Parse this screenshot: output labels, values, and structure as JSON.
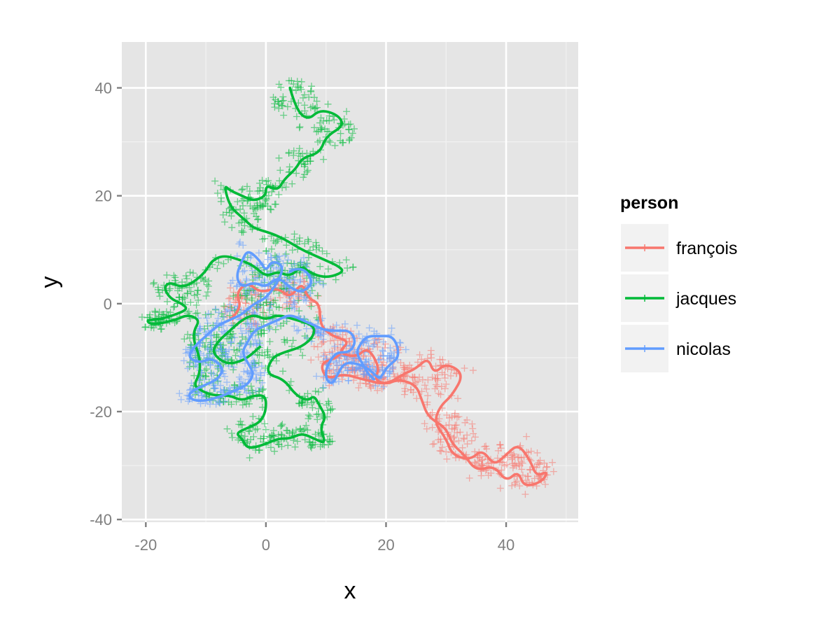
{
  "chart_data": {
    "type": "scatter",
    "xlabel": "x",
    "ylabel": "y",
    "xlim": [
      -24,
      52
    ],
    "ylim": [
      -40.5,
      48.5
    ],
    "xticks": [
      -20,
      0,
      20,
      40
    ],
    "yticks": [
      -40,
      -20,
      0,
      20,
      40
    ],
    "x_tick_labels": [
      "-20",
      "0",
      "20",
      "40"
    ],
    "y_tick_labels": [
      "-40",
      "-20",
      "0",
      "20",
      "40"
    ],
    "grid": true,
    "legend": {
      "title": "person",
      "position": "right"
    },
    "point_shape": "plus",
    "series": [
      {
        "name": "françois",
        "color": "#F8766D",
        "path": [
          [
            -6,
            -3
          ],
          [
            -4,
            -1
          ],
          [
            -5,
            2
          ],
          [
            -3,
            4
          ],
          [
            -1,
            2
          ],
          [
            2,
            3
          ],
          [
            4,
            1
          ],
          [
            6,
            4
          ],
          [
            7,
            1
          ],
          [
            9,
            0
          ],
          [
            9,
            -4
          ],
          [
            11,
            -6
          ],
          [
            14,
            -7
          ],
          [
            12,
            -9
          ],
          [
            15,
            -10
          ],
          [
            17,
            -8
          ],
          [
            19,
            -12
          ],
          [
            18,
            -14
          ],
          [
            20,
            -15
          ],
          [
            23,
            -13
          ],
          [
            25,
            -12
          ],
          [
            27,
            -10
          ],
          [
            28,
            -13
          ],
          [
            30,
            -11
          ],
          [
            33,
            -13
          ],
          [
            31,
            -17
          ],
          [
            29,
            -19
          ],
          [
            28,
            -22
          ],
          [
            30,
            -25
          ],
          [
            31,
            -28
          ],
          [
            34,
            -29
          ],
          [
            36,
            -27
          ],
          [
            38,
            -30
          ],
          [
            40,
            -28
          ],
          [
            42,
            -26
          ],
          [
            44,
            -29
          ],
          [
            45,
            -32
          ],
          [
            47,
            -31
          ],
          [
            46,
            -33
          ],
          [
            43,
            -34
          ],
          [
            42,
            -31
          ],
          [
            40,
            -33
          ],
          [
            38,
            -30
          ],
          [
            35,
            -31
          ],
          [
            33,
            -28
          ],
          [
            31,
            -26
          ],
          [
            30,
            -23
          ],
          [
            27,
            -21
          ],
          [
            26,
            -18
          ],
          [
            25,
            -15
          ],
          [
            22,
            -14
          ],
          [
            20,
            -15
          ],
          [
            16,
            -14
          ],
          [
            13,
            -13
          ],
          [
            10,
            -14
          ],
          [
            9,
            -11
          ],
          [
            12,
            -10
          ],
          [
            13,
            -8
          ]
        ],
        "cloud": [
          {
            "cx": -3,
            "cy": -1,
            "rx": 4,
            "ry": 4,
            "n": 45
          },
          {
            "cx": 4,
            "cy": 2,
            "rx": 4,
            "ry": 3,
            "n": 35
          },
          {
            "cx": 12,
            "cy": -8,
            "rx": 4,
            "ry": 4,
            "n": 45
          },
          {
            "cx": 19,
            "cy": -11,
            "rx": 5,
            "ry": 5,
            "n": 60
          },
          {
            "cx": 27,
            "cy": -14,
            "rx": 5,
            "ry": 5,
            "n": 50
          },
          {
            "cx": 31,
            "cy": -24,
            "rx": 4,
            "ry": 4,
            "n": 45
          },
          {
            "cx": 38,
            "cy": -29,
            "rx": 4,
            "ry": 3,
            "n": 45
          },
          {
            "cx": 44,
            "cy": -31,
            "rx": 3,
            "ry": 4,
            "n": 40
          },
          {
            "cx": 14,
            "cy": -13,
            "rx": 5,
            "ry": 2,
            "n": 30
          }
        ]
      },
      {
        "name": "jacques",
        "color": "#00BA38",
        "path": [
          [
            4,
            40
          ],
          [
            5,
            36
          ],
          [
            7,
            34
          ],
          [
            9,
            36
          ],
          [
            12,
            35
          ],
          [
            13,
            33
          ],
          [
            10,
            31
          ],
          [
            9,
            28
          ],
          [
            6,
            27
          ],
          [
            5,
            25
          ],
          [
            3,
            23
          ],
          [
            2,
            21
          ],
          [
            0,
            22
          ],
          [
            0,
            20
          ],
          [
            -2,
            19
          ],
          [
            -4,
            20
          ],
          [
            -6,
            21
          ],
          [
            -7,
            22
          ],
          [
            -6,
            18
          ],
          [
            -4,
            16
          ],
          [
            -3,
            15
          ],
          [
            -2,
            14
          ],
          [
            1,
            13
          ],
          [
            3,
            12
          ],
          [
            6,
            10
          ],
          [
            8,
            9
          ],
          [
            10,
            8
          ],
          [
            12,
            7
          ],
          [
            13,
            6
          ],
          [
            11,
            5
          ],
          [
            9,
            5
          ],
          [
            7,
            6
          ],
          [
            6,
            7
          ],
          [
            4,
            5
          ],
          [
            2,
            6
          ],
          [
            0,
            5
          ],
          [
            -2,
            7
          ],
          [
            -4,
            8
          ],
          [
            -7,
            9
          ],
          [
            -9,
            8
          ],
          [
            -10,
            6
          ],
          [
            -12,
            4
          ],
          [
            -14,
            3
          ],
          [
            -16,
            4
          ],
          [
            -17,
            3
          ],
          [
            -16,
            1
          ],
          [
            -14,
            0
          ],
          [
            -13,
            -1
          ],
          [
            -15,
            -2
          ],
          [
            -18,
            -3
          ],
          [
            -20,
            -3
          ],
          [
            -19,
            -4
          ],
          [
            -15,
            -3
          ],
          [
            -13,
            -2
          ],
          [
            -11,
            -3
          ],
          [
            -12,
            -5
          ],
          [
            -12,
            -7
          ],
          [
            -11,
            -10
          ],
          [
            -11,
            -13
          ],
          [
            -12,
            -15
          ],
          [
            -11,
            -16
          ],
          [
            -9,
            -17
          ],
          [
            -6,
            -17
          ],
          [
            -4,
            -18
          ],
          [
            -2,
            -17
          ],
          [
            0,
            -17
          ],
          [
            0,
            -20
          ],
          [
            -1,
            -22
          ],
          [
            -3,
            -23
          ],
          [
            -5,
            -24
          ],
          [
            -4,
            -25
          ],
          [
            -3,
            -27
          ],
          [
            0,
            -26
          ],
          [
            2,
            -25
          ],
          [
            4,
            -25
          ],
          [
            6,
            -24
          ],
          [
            8,
            -25
          ],
          [
            10,
            -26
          ],
          [
            9,
            -23
          ],
          [
            10,
            -21
          ],
          [
            9,
            -19
          ],
          [
            8,
            -17
          ],
          [
            7,
            -18
          ],
          [
            5,
            -17
          ],
          [
            3,
            -14
          ],
          [
            0,
            -13
          ],
          [
            1,
            -10
          ],
          [
            3,
            -9
          ],
          [
            6,
            -8
          ],
          [
            8,
            -6
          ],
          [
            8,
            -4
          ],
          [
            5,
            -3
          ],
          [
            2,
            -2
          ],
          [
            0,
            -3
          ],
          [
            -2,
            -2
          ],
          [
            -4,
            -3
          ],
          [
            -6,
            -5
          ],
          [
            -8,
            -7
          ],
          [
            -9,
            -9
          ],
          [
            -7,
            -11
          ],
          [
            -5,
            -11
          ],
          [
            -3,
            -10
          ],
          [
            -1,
            -8
          ]
        ],
        "cloud": [
          {
            "cx": 5,
            "cy": 38,
            "rx": 4,
            "ry": 4,
            "n": 40
          },
          {
            "cx": 11,
            "cy": 32,
            "rx": 4,
            "ry": 3,
            "n": 35
          },
          {
            "cx": 5,
            "cy": 26,
            "rx": 3,
            "ry": 3,
            "n": 25
          },
          {
            "cx": -1,
            "cy": 20,
            "rx": 4,
            "ry": 3,
            "n": 35
          },
          {
            "cx": -4,
            "cy": 16,
            "rx": 3,
            "ry": 3,
            "n": 25
          },
          {
            "cx": 5,
            "cy": 10,
            "rx": 5,
            "ry": 3,
            "n": 30
          },
          {
            "cx": -14,
            "cy": 3,
            "rx": 5,
            "ry": 3,
            "n": 45
          },
          {
            "cx": -18,
            "cy": -3,
            "rx": 3,
            "ry": 2,
            "n": 30
          },
          {
            "cx": -10,
            "cy": -10,
            "rx": 3,
            "ry": 6,
            "n": 45
          },
          {
            "cx": -5,
            "cy": -17,
            "rx": 5,
            "ry": 2,
            "n": 35
          },
          {
            "cx": -1,
            "cy": -24,
            "rx": 5,
            "ry": 3,
            "n": 40
          },
          {
            "cx": 6,
            "cy": -25,
            "rx": 5,
            "ry": 2,
            "n": 35
          },
          {
            "cx": 8,
            "cy": -19,
            "rx": 3,
            "ry": 3,
            "n": 25
          },
          {
            "cx": -3,
            "cy": -5,
            "rx": 7,
            "ry": 7,
            "n": 90
          },
          {
            "cx": 3,
            "cy": 3,
            "rx": 7,
            "ry": 5,
            "n": 70
          }
        ]
      },
      {
        "name": "nicolas",
        "color": "#619CFF",
        "path": [
          [
            4,
            6
          ],
          [
            6,
            7
          ],
          [
            8,
            4
          ],
          [
            6,
            2
          ],
          [
            4,
            3
          ],
          [
            2,
            5
          ],
          [
            0,
            3
          ],
          [
            -2,
            4
          ],
          [
            -4,
            3
          ],
          [
            -5,
            5
          ],
          [
            -4,
            8
          ],
          [
            -3,
            10
          ],
          [
            -1,
            8
          ],
          [
            0,
            6
          ],
          [
            1,
            8
          ],
          [
            3,
            7
          ],
          [
            2,
            4
          ],
          [
            0,
            1
          ],
          [
            -2,
            0
          ],
          [
            -4,
            -2
          ],
          [
            -6,
            -3
          ],
          [
            -8,
            -4
          ],
          [
            -10,
            -6
          ],
          [
            -12,
            -8
          ],
          [
            -13,
            -10
          ],
          [
            -11,
            -11
          ],
          [
            -9,
            -10
          ],
          [
            -7,
            -12
          ],
          [
            -8,
            -14
          ],
          [
            -10,
            -15
          ],
          [
            -12,
            -16
          ],
          [
            -13,
            -17
          ],
          [
            -12,
            -18
          ],
          [
            -10,
            -18
          ],
          [
            -7,
            -17
          ],
          [
            -5,
            -16
          ],
          [
            -3,
            -15
          ],
          [
            -2,
            -13
          ],
          [
            -3,
            -11
          ],
          [
            -4,
            -9
          ],
          [
            -3,
            -7
          ],
          [
            -2,
            -5
          ],
          [
            0,
            -4
          ],
          [
            2,
            -3
          ],
          [
            4,
            -2
          ],
          [
            6,
            -3
          ],
          [
            8,
            -4
          ],
          [
            10,
            -5
          ],
          [
            12,
            -5
          ],
          [
            14,
            -5
          ],
          [
            15,
            -7
          ],
          [
            14,
            -9
          ],
          [
            12,
            -9
          ],
          [
            11,
            -10
          ],
          [
            10,
            -12
          ],
          [
            10,
            -14
          ],
          [
            11,
            -15
          ],
          [
            12,
            -13
          ],
          [
            13,
            -11
          ],
          [
            15,
            -11
          ],
          [
            17,
            -12
          ],
          [
            18,
            -13
          ],
          [
            19,
            -14
          ],
          [
            20,
            -12
          ],
          [
            21,
            -11
          ],
          [
            22,
            -10
          ],
          [
            22,
            -8
          ],
          [
            21,
            -6
          ],
          [
            19,
            -6
          ],
          [
            17,
            -6
          ],
          [
            16,
            -7
          ],
          [
            15,
            -9
          ],
          [
            16,
            -11
          ],
          [
            17,
            -13
          ],
          [
            18,
            -14
          ]
        ],
        "cloud": [
          {
            "cx": 2,
            "cy": 4,
            "rx": 7,
            "ry": 5,
            "n": 70
          },
          {
            "cx": -6,
            "cy": -5,
            "rx": 6,
            "ry": 5,
            "n": 70
          },
          {
            "cx": -10,
            "cy": -11,
            "rx": 4,
            "ry": 4,
            "n": 45
          },
          {
            "cx": -9,
            "cy": -17,
            "rx": 5,
            "ry": 2,
            "n": 35
          },
          {
            "cx": -3,
            "cy": -13,
            "rx": 3,
            "ry": 4,
            "n": 35
          },
          {
            "cx": 18,
            "cy": -10,
            "rx": 4,
            "ry": 4,
            "n": 45
          },
          {
            "cx": 12,
            "cy": -12,
            "rx": 3,
            "ry": 3,
            "n": 25
          },
          {
            "cx": 8,
            "cy": -5,
            "rx": 4,
            "ry": 2,
            "n": 25
          }
        ]
      }
    ]
  }
}
